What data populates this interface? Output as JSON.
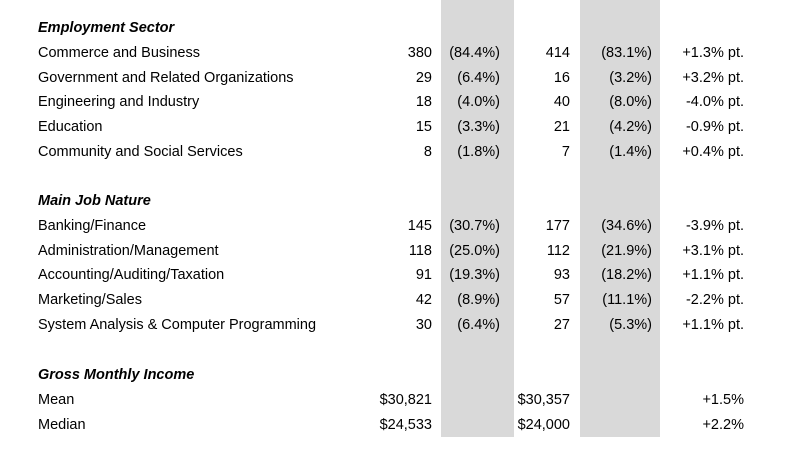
{
  "sections": [
    {
      "title": "Employment Sector",
      "rows": [
        {
          "label": "Commerce and Business",
          "n1": "380",
          "p1": "(84.4%)",
          "n2": "414",
          "p2": "(83.1%)",
          "diff": "+1.3% pt."
        },
        {
          "label": "Government and Related Organizations",
          "n1": "29",
          "p1": "(6.4%)",
          "n2": "16",
          "p2": "(3.2%)",
          "diff": "+3.2% pt."
        },
        {
          "label": "Engineering and Industry",
          "n1": "18",
          "p1": "(4.0%)",
          "n2": "40",
          "p2": "(8.0%)",
          "diff": "-4.0% pt."
        },
        {
          "label": "Education",
          "n1": "15",
          "p1": "(3.3%)",
          "n2": "21",
          "p2": "(4.2%)",
          "diff": "-0.9% pt."
        },
        {
          "label": "Community and Social Services",
          "n1": "8",
          "p1": "(1.8%)",
          "n2": "7",
          "p2": "(1.4%)",
          "diff": "+0.4% pt."
        }
      ]
    },
    {
      "title": "Main Job Nature",
      "rows": [
        {
          "label": "Banking/Finance",
          "n1": "145",
          "p1": "(30.7%)",
          "n2": "177",
          "p2": "(34.6%)",
          "diff": "-3.9% pt."
        },
        {
          "label": "Administration/Management",
          "n1": "118",
          "p1": "(25.0%)",
          "n2": "112",
          "p2": "(21.9%)",
          "diff": "+3.1% pt."
        },
        {
          "label": "Accounting/Auditing/Taxation",
          "n1": "91",
          "p1": "(19.3%)",
          "n2": "93",
          "p2": "(18.2%)",
          "diff": "+1.1% pt."
        },
        {
          "label": "Marketing/Sales",
          "n1": "42",
          "p1": "(8.9%)",
          "n2": "57",
          "p2": "(11.1%)",
          "diff": "-2.2% pt."
        },
        {
          "label": "System Analysis & Computer Programming",
          "n1": "30",
          "p1": "(6.4%)",
          "n2": "27",
          "p2": "(5.3%)",
          "diff": "+1.1% pt."
        }
      ]
    },
    {
      "title": "Gross Monthly Income",
      "rows": [
        {
          "label": "Mean",
          "n1": "$30,821",
          "p1": "",
          "n2": "$30,357",
          "p2": "",
          "diff": "+1.5%"
        },
        {
          "label": "Median",
          "n1": "$24,533",
          "p1": "",
          "n2": "$24,000",
          "p2": "",
          "diff": "+2.2%"
        }
      ]
    }
  ]
}
